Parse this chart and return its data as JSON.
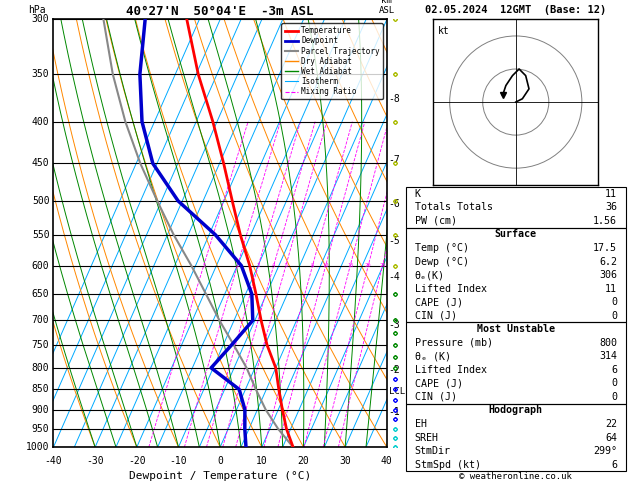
{
  "title_left": "40°27'N  50°04'E  -3m ASL",
  "title_right": "02.05.2024  12GMT  (Base: 12)",
  "xlabel": "Dewpoint / Temperature (°C)",
  "ylabel_left": "hPa",
  "copyright": "© weatheronline.co.uk",
  "pressure_levels": [
    300,
    350,
    400,
    450,
    500,
    550,
    600,
    650,
    700,
    750,
    800,
    850,
    900,
    950,
    1000
  ],
  "pmin": 300,
  "pmax": 1000,
  "tmin": -40,
  "tmax": 40,
  "skew_factor": 45.0,
  "temp_profile": {
    "pressure": [
      1000,
      950,
      900,
      850,
      800,
      750,
      700,
      650,
      600,
      550,
      500,
      450,
      400,
      350,
      300
    ],
    "temperature": [
      17.5,
      14.0,
      11.0,
      8.0,
      5.0,
      0.5,
      -3.5,
      -7.5,
      -12.0,
      -17.5,
      -23.0,
      -29.0,
      -36.0,
      -44.5,
      -53.0
    ]
  },
  "dewpoint_profile": {
    "pressure": [
      1000,
      950,
      900,
      850,
      800,
      750,
      700,
      650,
      600,
      550,
      500,
      450,
      400,
      350,
      300
    ],
    "dewpoint": [
      6.2,
      4.0,
      2.0,
      -1.5,
      -10.5,
      -8.0,
      -5.5,
      -8.5,
      -14.0,
      -23.5,
      -36.0,
      -46.0,
      -53.0,
      -58.5,
      -63.0
    ]
  },
  "parcel_profile": {
    "pressure": [
      1000,
      950,
      900,
      850,
      800,
      750,
      700,
      650,
      600,
      550,
      500,
      450,
      400,
      350,
      300
    ],
    "temperature": [
      17.5,
      12.0,
      7.0,
      2.5,
      -2.0,
      -7.5,
      -13.5,
      -19.5,
      -26.0,
      -33.5,
      -41.0,
      -49.0,
      -57.0,
      -65.0,
      -73.0
    ]
  },
  "colors": {
    "temperature": "#ff0000",
    "dewpoint": "#0000cc",
    "parcel": "#888888",
    "dry_adiabat": "#ff8800",
    "wet_adiabat": "#008800",
    "isotherm": "#00aaff",
    "mixing_ratio": "#ff00ff",
    "background": "#ffffff",
    "grid": "#000000"
  },
  "km_levels": [
    1,
    2,
    3,
    4,
    5,
    6,
    7,
    8
  ],
  "km_pressures": [
    905,
    805,
    710,
    620,
    560,
    505,
    445,
    375
  ],
  "lcl_pressure": 855,
  "mixing_ratios": [
    1,
    2,
    3,
    4,
    5,
    8,
    10,
    15,
    20,
    25
  ],
  "isotherm_temps": [
    -50,
    -45,
    -40,
    -35,
    -30,
    -25,
    -20,
    -15,
    -10,
    -5,
    0,
    5,
    10,
    15,
    20,
    25,
    30,
    35,
    40,
    45,
    50
  ],
  "dry_adiabat_T0s": [
    -30,
    -20,
    -10,
    0,
    10,
    20,
    30,
    40,
    50,
    60,
    70,
    80,
    90,
    100,
    110,
    120,
    130,
    140,
    150,
    160
  ],
  "moist_adiabat_T0s": [
    -30,
    -25,
    -20,
    -15,
    -10,
    -5,
    0,
    5,
    10,
    15,
    20,
    25,
    30,
    35,
    40,
    45
  ],
  "stats": {
    "K": 11,
    "Totals_Totals": 36,
    "PW_cm": 1.56,
    "Surface_Temp": 17.5,
    "Surface_Dewp": 6.2,
    "theta_e": 306,
    "Lifted_Index": 11,
    "CAPE": 0,
    "CIN": 0,
    "MU_Pressure": 800,
    "MU_theta_e": 314,
    "MU_Lifted_Index": 6,
    "MU_CAPE": 0,
    "MU_CIN": 0,
    "EH": 22,
    "SREH": 64,
    "StmDir": 299,
    "StmSpd": 6
  },
  "hodo_u": [
    2,
    4,
    3,
    1,
    -1,
    -3,
    -4
  ],
  "hodo_v": [
    1,
    4,
    8,
    10,
    8,
    5,
    2
  ],
  "wind_barbs": {
    "pressures": [
      1000,
      975,
      950,
      925,
      900,
      875,
      850,
      825,
      800,
      775,
      750,
      725,
      700,
      650,
      600,
      550,
      500,
      450,
      400,
      350,
      300
    ],
    "u": [
      3,
      3,
      4,
      4,
      5,
      4,
      3,
      2,
      1,
      0,
      -1,
      -2,
      -3,
      -4,
      -4,
      -5,
      -5,
      -6,
      -5,
      -4,
      -4
    ],
    "v": [
      1,
      2,
      2,
      3,
      3,
      4,
      4,
      5,
      5,
      5,
      4,
      4,
      3,
      3,
      3,
      2,
      2,
      1,
      1,
      1,
      0
    ],
    "colors": [
      "#00cccc",
      "#00cccc",
      "#00cccc",
      "#0000ff",
      "#0000ff",
      "#0000ff",
      "#0000ff",
      "#0000ff",
      "#008800",
      "#008800",
      "#008800",
      "#008800",
      "#008800",
      "#008800",
      "#aabb00",
      "#aabb00",
      "#aabb00",
      "#aabb00",
      "#aabb00",
      "#aabb00",
      "#aabb00"
    ]
  }
}
